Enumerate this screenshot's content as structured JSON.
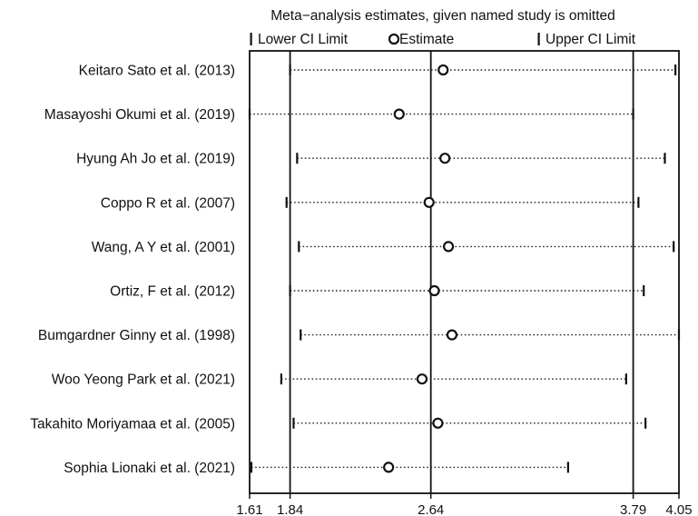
{
  "chart_data": {
    "type": "forest",
    "title": "Meta−analysis estimates, given named study is omitted",
    "legend": {
      "lower": "Lower CI Limit",
      "estimate": "Estimate",
      "upper": "Upper CI Limit"
    },
    "xlim": [
      1.61,
      4.05
    ],
    "reference_lines": [
      1.84,
      2.64,
      3.79
    ],
    "ticks": [
      {
        "value": 1.61,
        "label": "1.61"
      },
      {
        "value": 1.84,
        "label": "1.84"
      },
      {
        "value": 2.64,
        "label": "2.64"
      },
      {
        "value": 3.79,
        "label": "3.79"
      },
      {
        "value": 4.05,
        "label": "4.05"
      }
    ],
    "studies": [
      {
        "label": "Keitaro Sato et al. (2013)",
        "lower": 1.84,
        "estimate": 2.71,
        "upper": 4.03
      },
      {
        "label": "Masayoshi Okumi et al. (2019)",
        "lower": 1.61,
        "estimate": 2.46,
        "upper": 3.79
      },
      {
        "label": "Hyung Ah Jo et al. (2019)",
        "lower": 1.88,
        "estimate": 2.72,
        "upper": 3.97
      },
      {
        "label": "Coppo R et al. (2007)",
        "lower": 1.82,
        "estimate": 2.63,
        "upper": 3.82
      },
      {
        "label": "Wang, A Y et al. (2001)",
        "lower": 1.89,
        "estimate": 2.74,
        "upper": 4.02
      },
      {
        "label": "Ortiz, F et al. (2012)",
        "lower": 1.84,
        "estimate": 2.66,
        "upper": 3.85
      },
      {
        "label": "Bumgardner Ginny et al. (1998)",
        "lower": 1.9,
        "estimate": 2.76,
        "upper": 4.05
      },
      {
        "label": "Woo Yeong Park et al. (2021)",
        "lower": 1.79,
        "estimate": 2.59,
        "upper": 3.75
      },
      {
        "label": "Takahito Moriyamaa et al. (2005)",
        "lower": 1.86,
        "estimate": 2.68,
        "upper": 3.86
      },
      {
        "label": "Sophia Lionaki et al. (2021)",
        "lower": 1.62,
        "estimate": 2.4,
        "upper": 3.42
      }
    ]
  }
}
